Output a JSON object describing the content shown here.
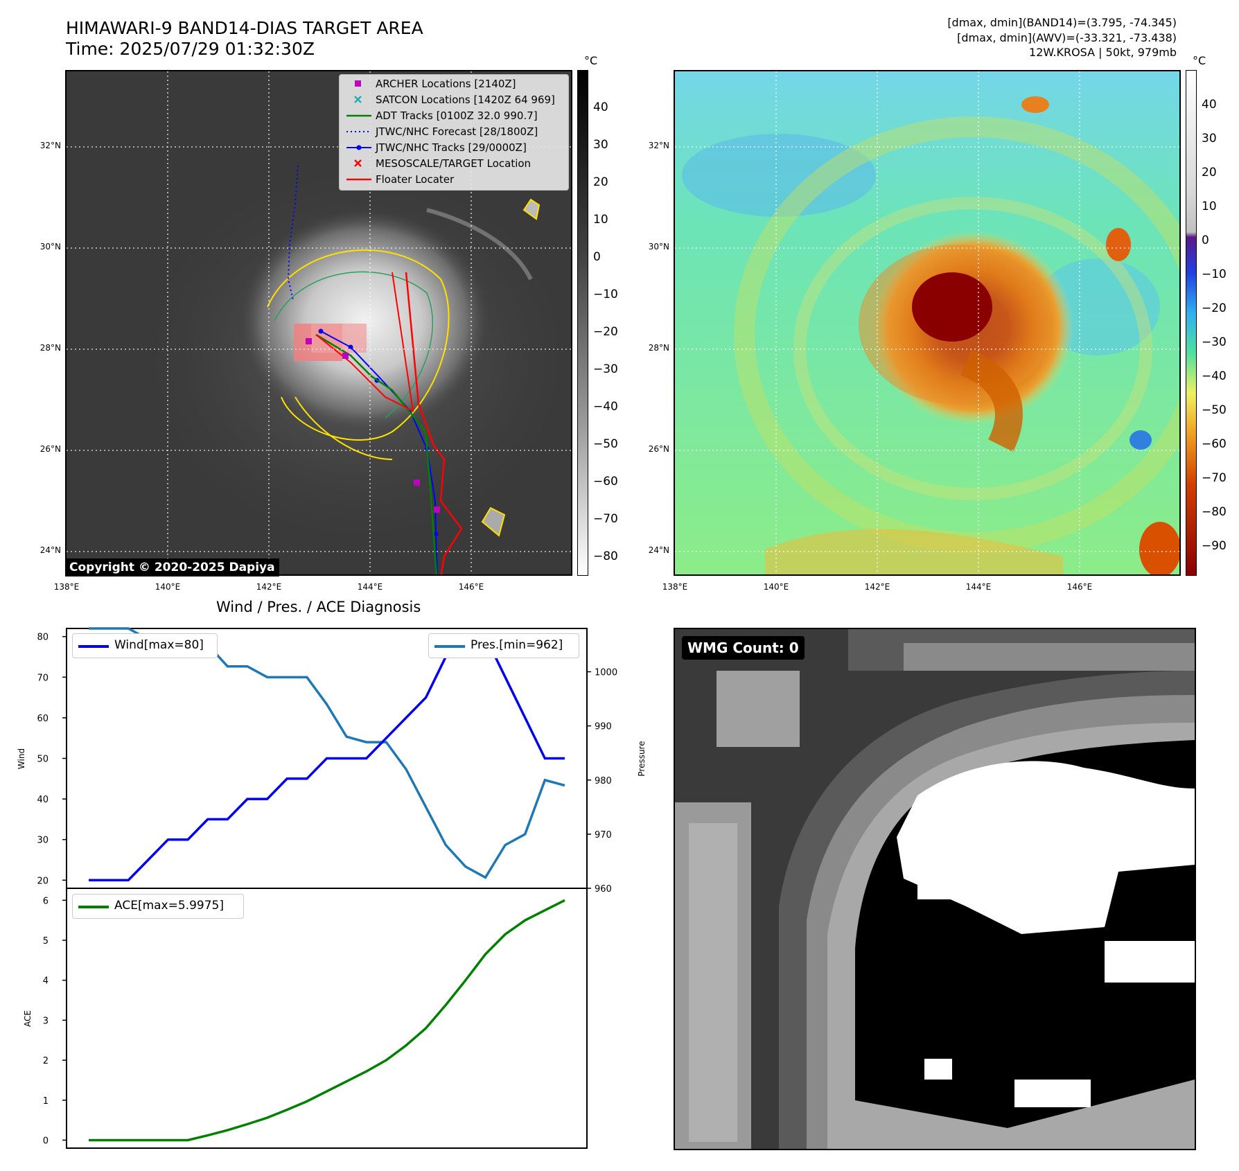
{
  "header": {
    "title_line1": "HIMAWARI-9 BAND14-DIAS TARGET AREA",
    "title_line2": "Time: 2025/07/29 01:32:30Z",
    "info_line1": "[dmax, dmin](BAND14)=(3.795, -74.345)",
    "info_line2": "[dmax, dmin](AWV)=(-33.321, -73.438)",
    "info_line3": "12W.KROSA | 50kt, 979mb"
  },
  "map_axes": {
    "lat_labels": [
      "32°N",
      "30°N",
      "28°N",
      "26°N",
      "24°N"
    ],
    "lon_labels": [
      "138°E",
      "140°E",
      "142°E",
      "144°E",
      "146°E"
    ]
  },
  "left_colorbar": {
    "unit": "°C",
    "ticks": [
      "40",
      "30",
      "20",
      "10",
      "0",
      "−10",
      "−20",
      "−30",
      "−40",
      "−50",
      "−60",
      "−70",
      "−80"
    ]
  },
  "right_colorbar": {
    "unit": "°C",
    "ticks": [
      "40",
      "30",
      "20",
      "10",
      "0",
      "−10",
      "−20",
      "−30",
      "−40",
      "−50",
      "−60",
      "−70",
      "−80",
      "−90"
    ]
  },
  "copyright": "Copyright © 2020-2025 Dapiya",
  "legend": [
    {
      "label": "ARCHER Locations [2140Z]",
      "color": "#c000c0",
      "marker": "square"
    },
    {
      "label": "SATCON Locations [1420Z 64 969]",
      "color": "#20b0b0",
      "marker": "x"
    },
    {
      "label": "ADT Tracks [0100Z 32.0 990.7]",
      "color": "#008000",
      "marker": "line"
    },
    {
      "label": "JTWC/NHC Forecast [28/1800Z]",
      "color": "#0000ff",
      "marker": "dotted"
    },
    {
      "label": "JTWC/NHC Tracks [29/0000Z]",
      "color": "#0000ff",
      "marker": "line-dot"
    },
    {
      "label": "MESOSCALE/TARGET Location",
      "color": "#ff0000",
      "marker": "x"
    },
    {
      "label": "Floater Locater",
      "color": "#ff0000",
      "marker": "line"
    }
  ],
  "wmg_label": "WMG Count: 0",
  "chart_data": [
    {
      "type": "line",
      "title": "Wind / Pres. / ACE Diagnosis",
      "ylabel": "Wind",
      "y2label": "Pressure",
      "ylim": [
        18,
        82
      ],
      "y2lim": [
        960,
        1008
      ],
      "yticks": [
        20,
        30,
        40,
        50,
        60,
        70,
        80
      ],
      "y2ticks": [
        960,
        970,
        980,
        990,
        1000
      ],
      "series": [
        {
          "name": "Wind[max=80]",
          "axis": "left",
          "color": "#0000ee",
          "values": [
            20,
            20,
            20,
            25,
            30,
            30,
            35,
            35,
            40,
            40,
            45,
            45,
            50,
            50,
            50,
            55,
            60,
            65,
            75,
            80,
            80,
            70,
            60,
            50,
            50
          ]
        },
        {
          "name": "Pres.[min=962]",
          "axis": "right",
          "color": "#1f77b4",
          "values": [
            1008,
            1008,
            1008,
            1006,
            1006,
            1005,
            1005,
            1001,
            1001,
            999,
            999,
            999,
            994,
            988,
            987,
            987,
            982,
            975,
            968,
            964,
            962,
            968,
            970,
            980,
            979
          ]
        }
      ]
    },
    {
      "type": "line",
      "ylabel": "ACE",
      "ylim": [
        -0.2,
        6.3
      ],
      "yticks": [
        0,
        1,
        2,
        3,
        4,
        5,
        6
      ],
      "series": [
        {
          "name": "ACE[max=5.9975]",
          "color": "#008000",
          "values": [
            0,
            0,
            0,
            0,
            0,
            0,
            0.12,
            0.25,
            0.4,
            0.56,
            0.76,
            0.97,
            1.22,
            1.47,
            1.72,
            2.0,
            2.37,
            2.8,
            3.38,
            4.0,
            4.65,
            5.15,
            5.5,
            5.75,
            6.0
          ]
        }
      ]
    }
  ]
}
